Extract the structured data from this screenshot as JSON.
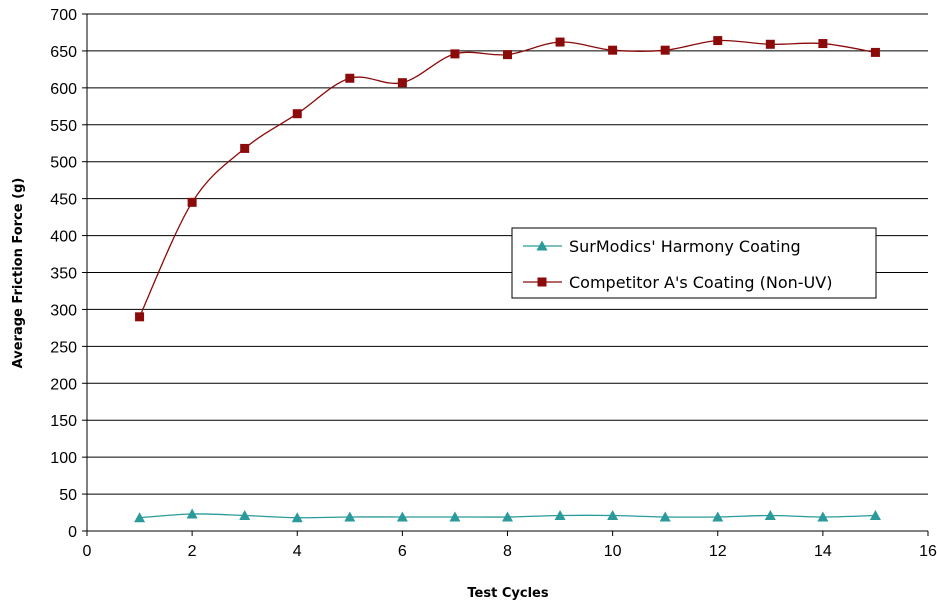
{
  "chart_data": {
    "type": "line",
    "title": "",
    "xlabel": "Test Cycles",
    "ylabel": "Average Friction Force (g)",
    "xlim": [
      0,
      16
    ],
    "ylim": [
      0,
      700
    ],
    "xticks": [
      0,
      2,
      4,
      6,
      8,
      10,
      12,
      14,
      16
    ],
    "yticks": [
      0,
      50,
      100,
      150,
      200,
      250,
      300,
      350,
      400,
      450,
      500,
      550,
      600,
      650,
      700
    ],
    "grid": "horizontal",
    "legend_position": "right-middle",
    "x": [
      1,
      2,
      3,
      4,
      5,
      6,
      7,
      8,
      9,
      10,
      11,
      12,
      13,
      14,
      15
    ],
    "series": [
      {
        "name": "SurModics' Harmony Coating",
        "marker": "triangle",
        "color": "#2a9a9a",
        "values": [
          18,
          23,
          21,
          18,
          19,
          19,
          19,
          19,
          21,
          21,
          19,
          19,
          21,
          19,
          21
        ]
      },
      {
        "name": "Competitor A's Coating (Non-UV)",
        "marker": "square",
        "color": "#8b0a0a",
        "values": [
          290,
          445,
          518,
          565,
          613,
          607,
          646,
          645,
          662,
          651,
          651,
          664,
          659,
          660,
          648
        ]
      }
    ]
  }
}
